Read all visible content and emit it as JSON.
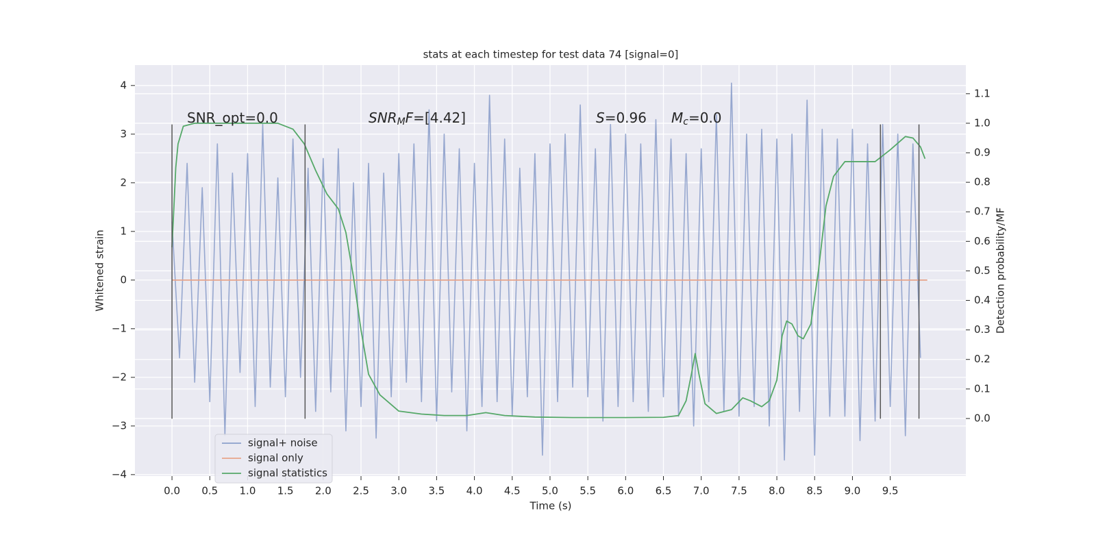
{
  "chart_data": {
    "type": "line",
    "title": "stats at each timestep for test data 74 [signal=0]",
    "xlabel": "Time (s)",
    "ylabel": "Whitened strain",
    "y2label": "Detection probability/MF",
    "xlim": [
      -0.49,
      10.5
    ],
    "ylim": [
      -4.03,
      4.42
    ],
    "y2lim": [
      -0.195,
      1.197
    ],
    "xticks": [
      {
        "value": 0,
        "label": "0.0"
      },
      0.5,
      {
        "value": 1,
        "label": "1.0"
      },
      1.5,
      {
        "value": 2,
        "label": "2.0"
      },
      2.5,
      {
        "value": 3,
        "label": "3.0"
      },
      3.5,
      {
        "value": 4,
        "label": "4.0"
      },
      4.5,
      {
        "value": 5,
        "label": "5.0"
      },
      5.5,
      {
        "value": 6,
        "label": "6.0"
      },
      6.5,
      {
        "value": 7,
        "label": "7.0"
      },
      7.5,
      {
        "value": 8,
        "label": "8.0"
      },
      8.5,
      {
        "value": 9,
        "label": "9.0"
      },
      9.5
    ],
    "yticks": [
      {
        "value": -4,
        "label": "−4"
      },
      {
        "value": -3,
        "label": "−3"
      },
      {
        "value": -2,
        "label": "−2"
      },
      {
        "value": -1,
        "label": "−1"
      },
      0,
      1,
      2,
      3,
      4
    ],
    "y2ticks": [
      {
        "value": 0,
        "label": "0.0"
      },
      0.1,
      0.2,
      0.3,
      0.4,
      0.5,
      0.6,
      0.7,
      0.8,
      0.9,
      {
        "value": 1,
        "label": "1.0"
      },
      1.1
    ],
    "grid": true,
    "legend": "lower left",
    "series": [
      {
        "name": "signal+ noise",
        "color": "#8da0cb",
        "x": [
          0,
          0.1,
          0.2,
          0.3,
          0.4,
          0.5,
          0.6,
          0.7,
          0.8,
          0.9,
          1,
          1.1,
          1.2,
          1.3,
          1.4,
          1.5,
          1.6,
          1.7,
          1.8,
          1.9,
          2,
          2.1,
          2.2,
          2.3,
          2.4,
          2.5,
          2.6,
          2.7,
          2.8,
          2.9,
          3,
          3.1,
          3.2,
          3.3,
          3.4,
          3.5,
          3.6,
          3.7,
          3.8,
          3.9,
          4,
          4.1,
          4.2,
          4.3,
          4.4,
          4.5,
          4.6,
          4.7,
          4.8,
          4.9,
          5,
          5.1,
          5.2,
          5.3,
          5.4,
          5.5,
          5.6,
          5.7,
          5.8,
          5.9,
          6,
          6.1,
          6.2,
          6.3,
          6.4,
          6.5,
          6.6,
          6.7,
          6.8,
          6.9,
          7,
          7.1,
          7.2,
          7.3,
          7.4,
          7.5,
          7.6,
          7.7,
          7.8,
          7.9,
          8,
          8.1,
          8.2,
          8.3,
          8.4,
          8.5,
          8.6,
          8.7,
          8.8,
          8.9,
          9,
          9.1,
          9.2,
          9.3,
          9.4,
          9.5,
          9.6,
          9.7,
          9.8,
          9.9
        ],
        "values": [
          1.2,
          -1.6,
          2.4,
          -2.1,
          1.9,
          -2.5,
          2.8,
          -3.2,
          2.2,
          -1.9,
          2.6,
          -2.6,
          3.2,
          -2.2,
          2.1,
          -2.4,
          2.9,
          -2.0,
          2.3,
          -2.7,
          2.5,
          -2.3,
          2.7,
          -3.1,
          2.0,
          -2.6,
          2.4,
          -3.25,
          2.2,
          -2.4,
          2.6,
          -2.1,
          2.8,
          -2.5,
          3.5,
          -2.9,
          3.0,
          -2.3,
          2.7,
          -3.1,
          2.4,
          -2.6,
          3.8,
          -2.5,
          2.9,
          -2.8,
          2.3,
          -2.4,
          2.6,
          -3.6,
          2.8,
          -2.5,
          3.0,
          -2.2,
          3.6,
          -2.4,
          2.7,
          -2.9,
          3.2,
          -2.6,
          3.0,
          -2.5,
          2.8,
          -2.7,
          3.3,
          -2.4,
          2.9,
          -2.8,
          2.6,
          -3.0,
          2.7,
          -2.5,
          3.4,
          -2.7,
          4.05,
          -2.8,
          3.0,
          -2.6,
          3.1,
          -3.0,
          2.9,
          -3.7,
          3.0,
          -2.7,
          3.7,
          -3.6,
          3.1,
          -2.8,
          2.9,
          -2.8,
          3.1,
          -3.3,
          2.8,
          -2.9,
          3.2,
          -2.6,
          3.0,
          -3.2,
          2.8,
          -1.6
        ]
      },
      {
        "name": "signal only",
        "color": "#e8a48a",
        "x": [
          0,
          9.99
        ],
        "values": [
          0,
          0
        ]
      },
      {
        "name": "signal statistics",
        "color": "#55a868",
        "axis": "y2",
        "x": [
          0,
          0.05,
          0.08,
          0.15,
          0.3,
          0.5,
          1,
          1.4,
          1.6,
          1.75,
          1.9,
          2.05,
          2.2,
          2.3,
          2.4,
          2.5,
          2.6,
          2.75,
          3,
          3.3,
          3.6,
          3.9,
          4.15,
          4.4,
          4.8,
          5.3,
          6,
          6.5,
          6.7,
          6.8,
          6.87,
          6.92,
          6.97,
          7.05,
          7.2,
          7.4,
          7.55,
          7.65,
          7.8,
          7.9,
          8,
          8.07,
          8.13,
          8.2,
          8.28,
          8.35,
          8.45,
          8.55,
          8.65,
          8.75,
          8.9,
          9.1,
          9.3,
          9.5,
          9.7,
          9.8,
          9.9,
          9.96
        ],
        "values": [
          0.58,
          0.85,
          0.93,
          0.99,
          1.0,
          1.0,
          1.0,
          1.0,
          0.98,
          0.93,
          0.84,
          0.76,
          0.71,
          0.63,
          0.48,
          0.3,
          0.15,
          0.08,
          0.025,
          0.015,
          0.01,
          0.01,
          0.02,
          0.01,
          0.005,
          0.003,
          0.003,
          0.004,
          0.01,
          0.06,
          0.15,
          0.22,
          0.15,
          0.05,
          0.017,
          0.03,
          0.07,
          0.06,
          0.04,
          0.06,
          0.13,
          0.28,
          0.33,
          0.32,
          0.28,
          0.27,
          0.32,
          0.5,
          0.72,
          0.82,
          0.87,
          0.87,
          0.87,
          0.91,
          0.955,
          0.95,
          0.92,
          0.88
        ]
      }
    ],
    "vlines": {
      "x": [
        0,
        1.76,
        9.37,
        9.88
      ],
      "ymin": -2.85,
      "ymax": 3.2,
      "color": "#555555"
    },
    "annotations": [
      [
        {
          "text": "SNR_opt=0.0"
        }
      ],
      [
        {
          "text": "SNR",
          "italic": true
        },
        {
          "text": "M",
          "italic": true,
          "sub": true
        },
        {
          "text": "F",
          "italic": true
        },
        {
          "text": "=[4.42]"
        }
      ],
      [
        {
          "text": "S",
          "italic": true
        },
        {
          "text": "=0.96"
        }
      ],
      [
        {
          "text": "M",
          "italic": true
        },
        {
          "text": "c",
          "italic": true,
          "sub": true
        },
        {
          "text": "=0.0"
        }
      ]
    ]
  }
}
